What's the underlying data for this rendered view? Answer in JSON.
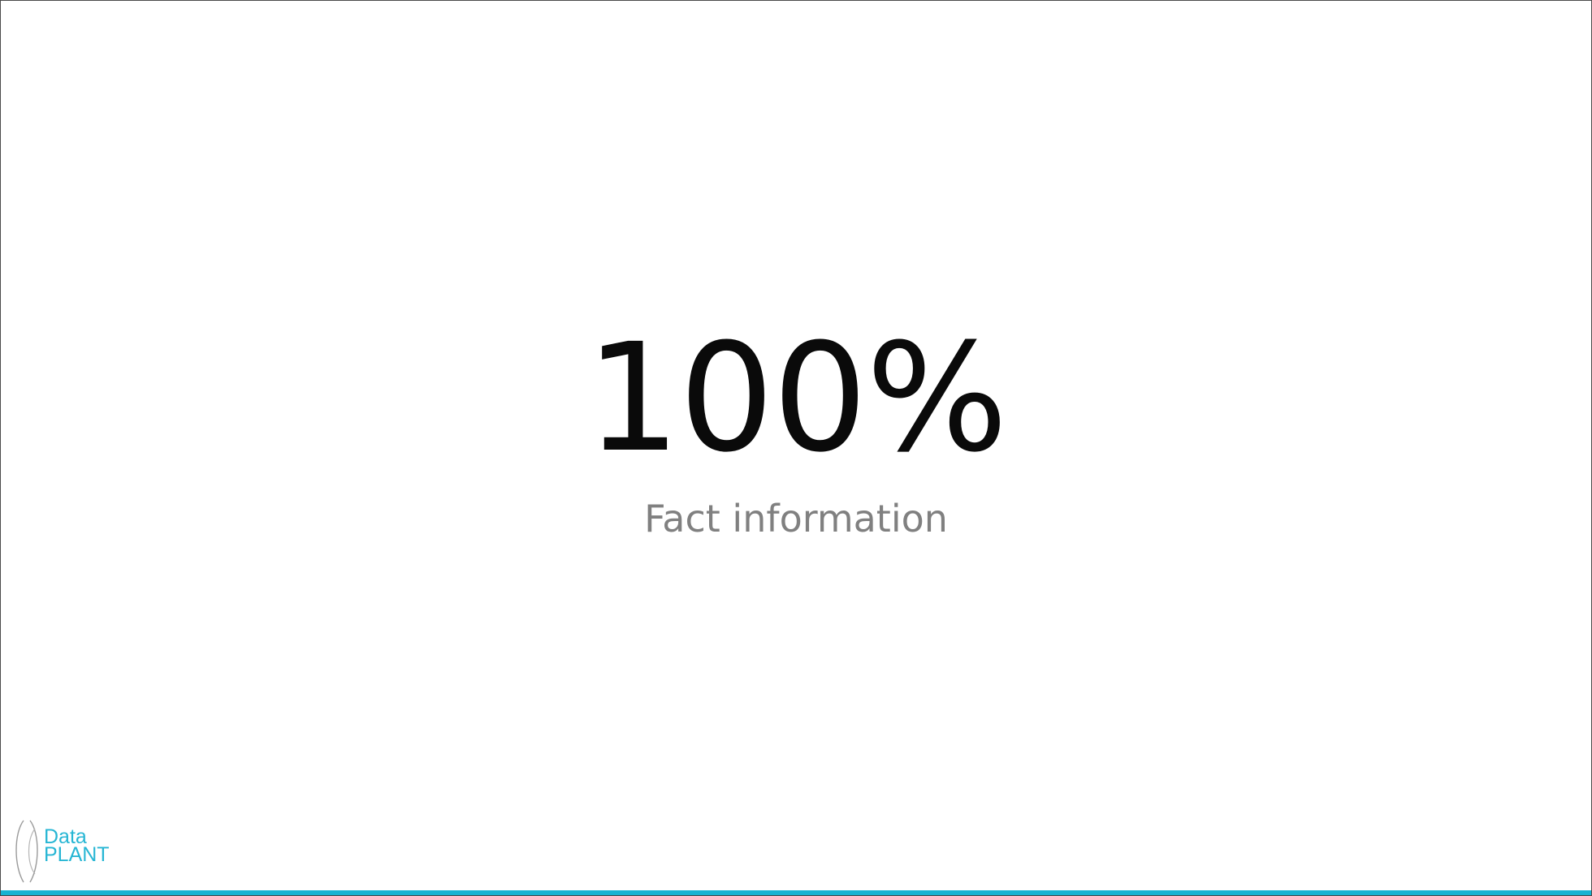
{
  "slide": {
    "fact_value": "100%",
    "fact_caption": "Fact information"
  },
  "logo": {
    "line1": "Data",
    "line2": "PLANT",
    "icon": "dataplant-arcs-icon"
  },
  "colors": {
    "accent": "#18b3d1",
    "logo_text": "#27b6d4",
    "value_text": "#0a0a0a",
    "caption_text": "#808080"
  }
}
